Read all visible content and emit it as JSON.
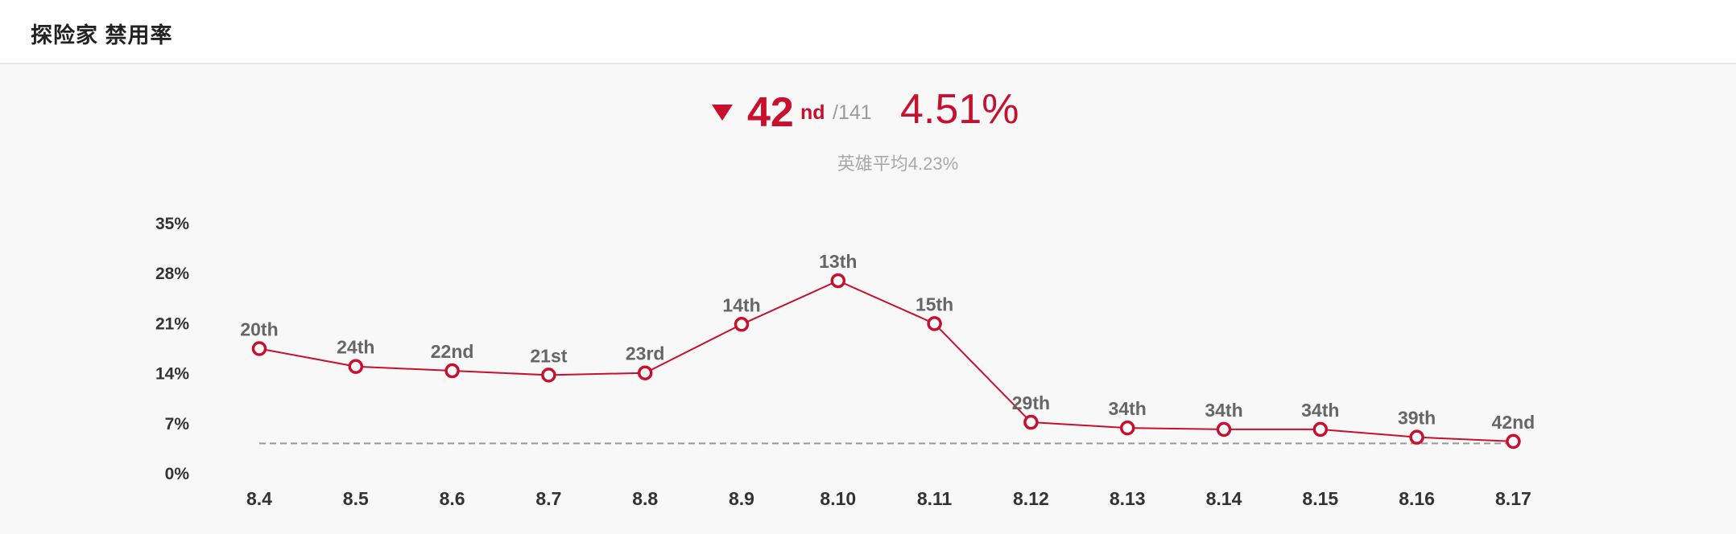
{
  "header": {
    "title": "探险家 禁用率"
  },
  "summary": {
    "rank": "42",
    "rank_suffix": "nd",
    "rank_total": "/141",
    "rate": "4.51%",
    "average_text": "英雄平均4.23%",
    "trend_icon": "triangle-down-icon"
  },
  "colors": {
    "accent": "#c8102e",
    "muted": "#9a9a9a",
    "avg_line": "#999999"
  },
  "chart_data": {
    "type": "line",
    "categories": [
      "8.4",
      "8.5",
      "8.6",
      "8.7",
      "8.8",
      "8.9",
      "8.10",
      "8.11",
      "8.12",
      "8.13",
      "8.14",
      "8.15",
      "8.16",
      "8.17"
    ],
    "values": [
      17.5,
      15.0,
      14.4,
      13.8,
      14.1,
      20.9,
      27.0,
      21.0,
      7.2,
      6.4,
      6.2,
      6.2,
      5.1,
      4.51
    ],
    "point_labels": [
      "20th",
      "24th",
      "22nd",
      "21st",
      "23rd",
      "14th",
      "13th",
      "15th",
      "29th",
      "34th",
      "34th",
      "34th",
      "39th",
      "42nd"
    ],
    "yticks": [
      "0%",
      "7%",
      "14%",
      "21%",
      "28%",
      "35%"
    ],
    "ytick_values": [
      0,
      7,
      14,
      21,
      28,
      35
    ],
    "ylim": [
      0,
      35
    ],
    "average": 4.23,
    "title": "",
    "xlabel": "",
    "ylabel": "",
    "grid": false,
    "legend": "none"
  }
}
